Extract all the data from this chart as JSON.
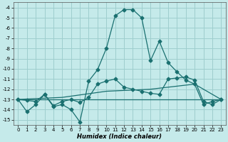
{
  "title": "",
  "xlabel": "Humidex (Indice chaleur)",
  "background_color": "#c5eaea",
  "grid_color": "#9ecece",
  "line_color": "#1a7070",
  "xlim": [
    -0.5,
    23.5
  ],
  "ylim": [
    -15.5,
    -3.5
  ],
  "yticks": [
    -4,
    -5,
    -6,
    -7,
    -8,
    -9,
    -10,
    -11,
    -12,
    -13,
    -14,
    -15
  ],
  "xticks": [
    0,
    1,
    2,
    3,
    4,
    5,
    6,
    7,
    8,
    9,
    10,
    11,
    12,
    13,
    14,
    15,
    16,
    17,
    18,
    19,
    20,
    21,
    22,
    23
  ],
  "line1_x": [
    0,
    1,
    2,
    3,
    4,
    5,
    6,
    7,
    8,
    9,
    10,
    11,
    12,
    13,
    14,
    15,
    16,
    17,
    18,
    19,
    20,
    21,
    22,
    23
  ],
  "line1_y": [
    -13.0,
    -14.2,
    -13.5,
    -12.5,
    -13.7,
    -13.5,
    -14.0,
    -15.2,
    -11.2,
    -10.1,
    -8.0,
    -4.8,
    -4.2,
    -4.2,
    -5.0,
    -9.2,
    -7.3,
    -9.4,
    -10.3,
    -11.1,
    -11.5,
    -13.5,
    -13.2,
    -13.0
  ],
  "line2_x": [
    0,
    1,
    2,
    3,
    4,
    5,
    6,
    7,
    8,
    9,
    10,
    11,
    12,
    13,
    14,
    15,
    16,
    17,
    18,
    19,
    20,
    21,
    22,
    23
  ],
  "line2_y": [
    -13.0,
    -13.1,
    -13.2,
    -12.5,
    -13.6,
    -13.2,
    -13.0,
    -13.3,
    -12.8,
    -11.5,
    -11.2,
    -11.0,
    -11.8,
    -12.0,
    -12.2,
    -12.4,
    -12.5,
    -11.0,
    -10.9,
    -10.8,
    -11.1,
    -13.2,
    -13.5,
    -13.0
  ],
  "line3_x": [
    0,
    23
  ],
  "line3_y": [
    -13.0,
    -13.0
  ],
  "line4_x": [
    0,
    5,
    10,
    15,
    20,
    23
  ],
  "line4_y": [
    -13.0,
    -12.8,
    -12.2,
    -12.0,
    -11.5,
    -13.0
  ]
}
